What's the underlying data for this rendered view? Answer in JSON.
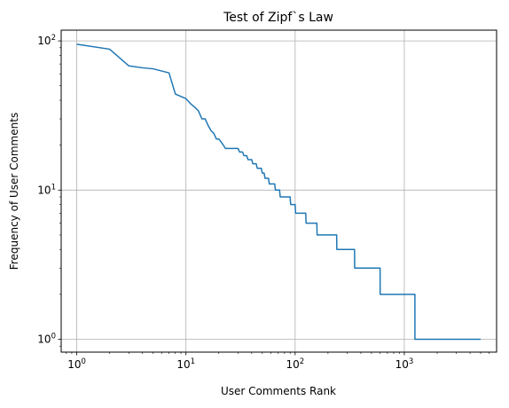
{
  "chart_data": {
    "type": "line",
    "title": "Test of Zipf`s Law",
    "xlabel": "User Comments Rank",
    "ylabel": "Frequency of User Comments",
    "xscale": "log",
    "yscale": "log",
    "xlim": [
      0.72,
      7000
    ],
    "ylim": [
      0.82,
      118
    ],
    "grid": true,
    "series_color": "#1f77b4",
    "x_major_ticks": [
      {
        "value": 1,
        "base": "10",
        "exp": "0"
      },
      {
        "value": 10,
        "base": "10",
        "exp": "1"
      },
      {
        "value": 100,
        "base": "10",
        "exp": "2"
      },
      {
        "value": 1000,
        "base": "10",
        "exp": "3"
      }
    ],
    "y_major_ticks": [
      {
        "value": 1,
        "base": "10",
        "exp": "0"
      },
      {
        "value": 10,
        "base": "10",
        "exp": "1"
      },
      {
        "value": 100,
        "base": "10",
        "exp": "2"
      }
    ],
    "series": [
      {
        "x": [
          1,
          2,
          3,
          4,
          5,
          7,
          8,
          10,
          11,
          12,
          13,
          14,
          15,
          16,
          17,
          18,
          19,
          20,
          21,
          22,
          23,
          24,
          25,
          30,
          31,
          33,
          34,
          36,
          37,
          40,
          41,
          44,
          45,
          49,
          50,
          52,
          53,
          57,
          58,
          65,
          66,
          72,
          73,
          90,
          91,
          100,
          101,
          125,
          126,
          158,
          159,
          240,
          241,
          350,
          351,
          600,
          601,
          1250,
          1251,
          5000
        ],
        "y": [
          95,
          88,
          68,
          66,
          65,
          61,
          44,
          41,
          38,
          36,
          34,
          30,
          30,
          27,
          25,
          24,
          22,
          22,
          21,
          20,
          19,
          19,
          19,
          19,
          18,
          18,
          17,
          17,
          16,
          16,
          15,
          15,
          14,
          14,
          13,
          13,
          12,
          12,
          11,
          11,
          10,
          10,
          9,
          9,
          8,
          8,
          7,
          7,
          6,
          6,
          5,
          5,
          4,
          4,
          3,
          3,
          2,
          2,
          1,
          1
        ]
      }
    ]
  }
}
